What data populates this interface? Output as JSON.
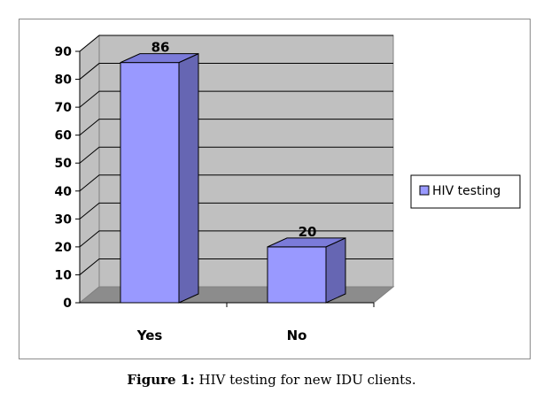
{
  "chart_data": {
    "type": "bar",
    "categories": [
      "Yes",
      "No"
    ],
    "series": [
      {
        "name": "HIV testing",
        "values": [
          86,
          20
        ]
      }
    ],
    "ylim": [
      0,
      90
    ],
    "yticks": [
      "0",
      "10",
      "20",
      "30",
      "40",
      "50",
      "60",
      "70",
      "80",
      "90"
    ],
    "data_labels": [
      "86",
      "20"
    ],
    "grid": true,
    "three_d": true,
    "legend_position": "right",
    "colors": {
      "bar_front": "#9999ff",
      "bar_side": "#6666b3",
      "bar_top": "#7b7bd9",
      "wall": "#c0c0c0",
      "floor": "#8c8c8c"
    }
  },
  "caption": {
    "label": "Figure 1:",
    "text": " HIV testing for new IDU clients."
  }
}
